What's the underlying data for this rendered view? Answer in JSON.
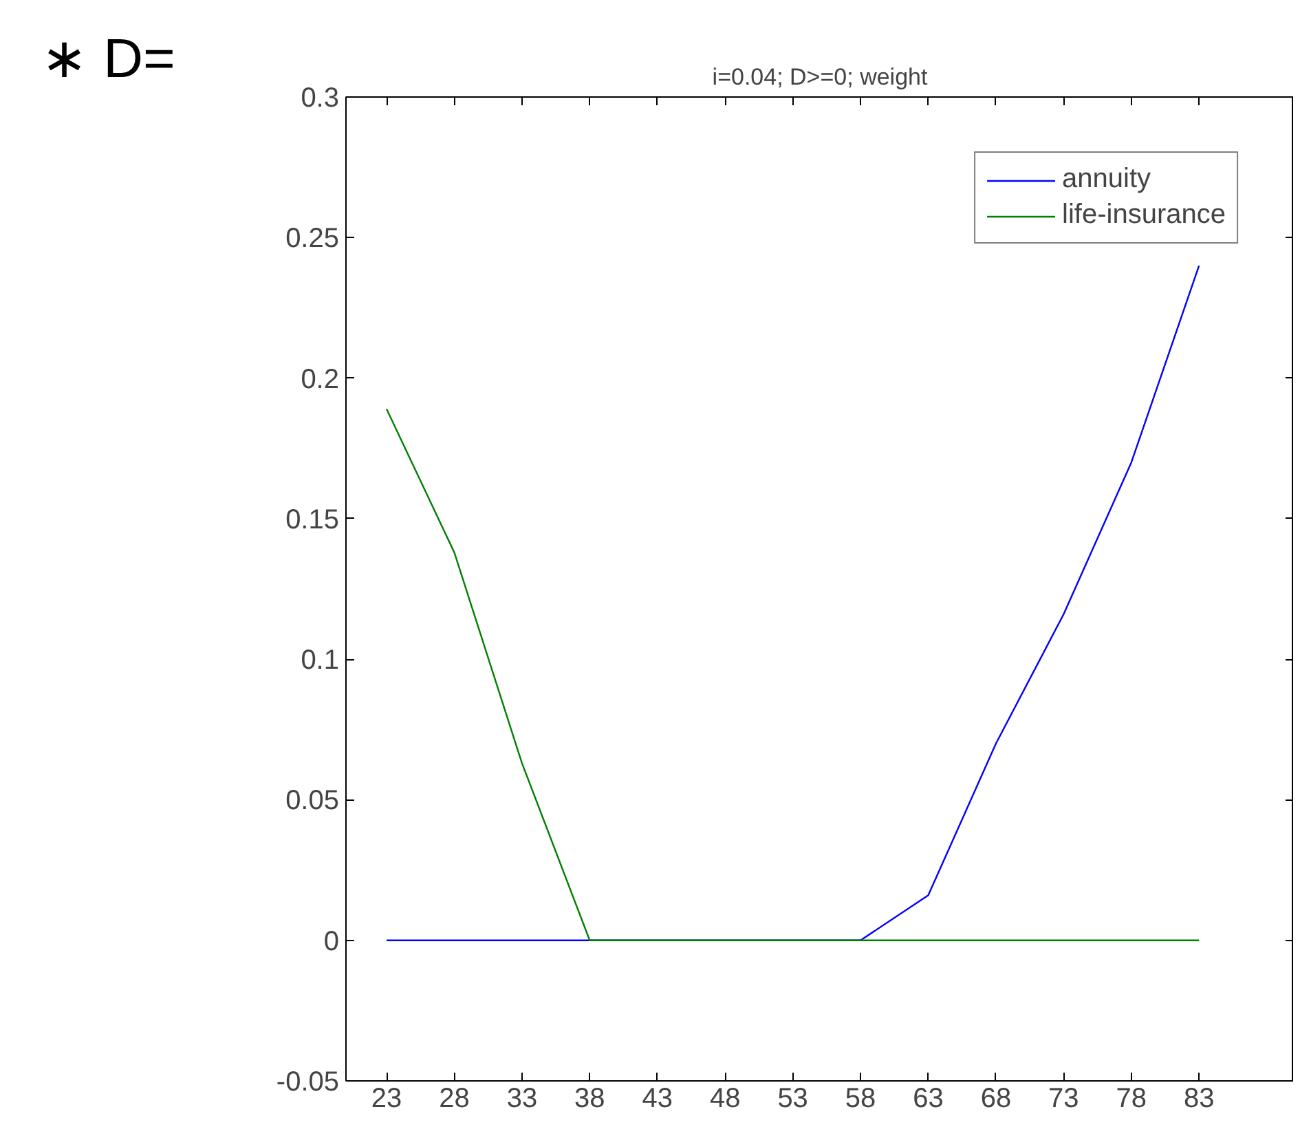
{
  "chart_data": {
    "type": "line",
    "title": "i=0.04; D>=0; weight",
    "annotations": [
      "∗ D="
    ],
    "x": [
      23,
      28,
      33,
      38,
      43,
      48,
      53,
      58,
      63,
      68,
      73,
      78,
      83
    ],
    "series": [
      {
        "name": "annuity",
        "color": "#0000ff",
        "values": [
          0,
          0,
          0,
          0,
          0,
          0,
          0,
          0,
          0.016,
          0.07,
          0.116,
          0.17,
          0.24
        ]
      },
      {
        "name": "life-insurance",
        "color": "#008000",
        "values": [
          0.189,
          0.138,
          0.063,
          0,
          0,
          0,
          0,
          0,
          0,
          0,
          0,
          0,
          0
        ]
      }
    ],
    "xlim": [
      20,
      90
    ],
    "ylim": [
      -0.05,
      0.3
    ],
    "xticks": [
      23,
      28,
      33,
      38,
      43,
      48,
      53,
      58,
      63,
      68,
      73,
      78,
      83
    ],
    "yticks": [
      -0.05,
      0,
      0.05,
      0.1,
      0.15,
      0.2,
      0.25,
      0.3
    ],
    "grid": false,
    "legend": "top right",
    "marker": "none",
    "line_style": "solid"
  }
}
